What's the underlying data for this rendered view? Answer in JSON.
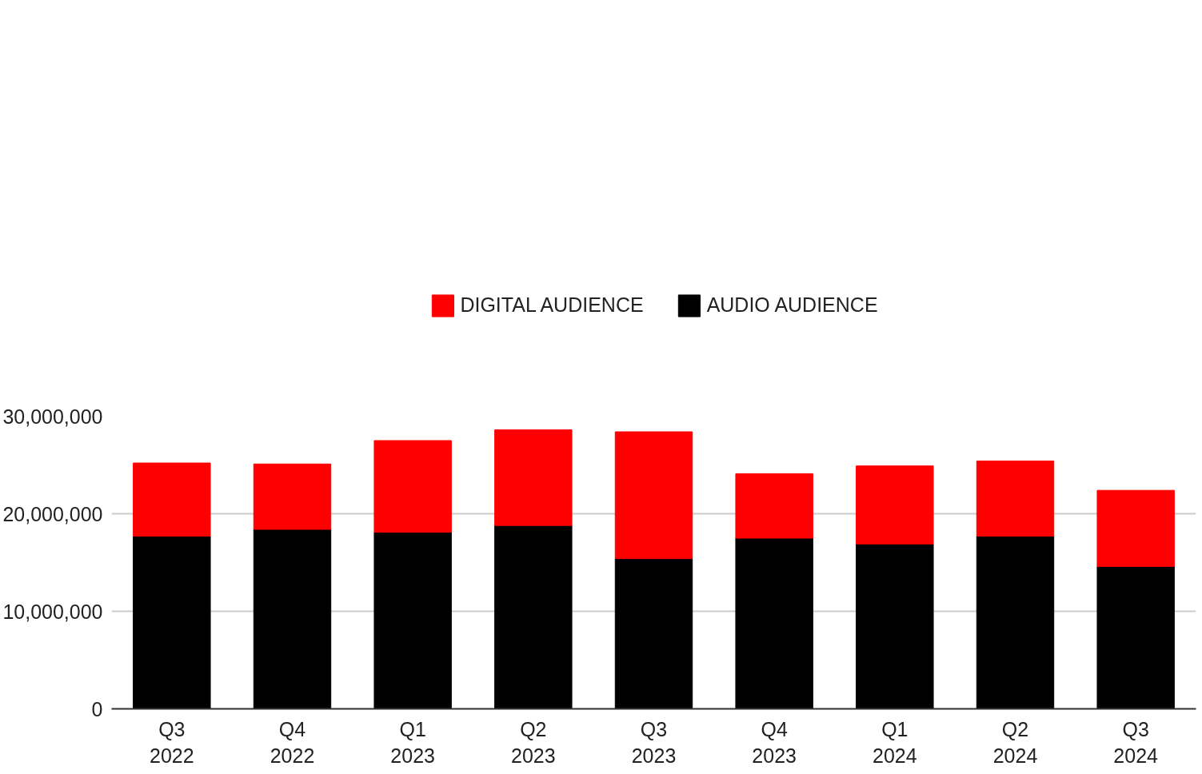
{
  "chart_data": {
    "type": "bar",
    "stacked": true,
    "categories": [
      "Q3\n2022",
      "Q4\n2022",
      "Q1\n2023",
      "Q2\n2023",
      "Q3\n2023",
      "Q4\n2023",
      "Q1\n2024",
      "Q2\n2024",
      "Q3\n2024"
    ],
    "series": [
      {
        "name": "AUDIO AUDIENCE",
        "color": "#000000",
        "values": [
          17700000,
          18400000,
          18100000,
          18800000,
          15400000,
          17500000,
          16900000,
          17700000,
          14600000
        ]
      },
      {
        "name": "DIGITAL AUDIENCE",
        "color": "#ff0000",
        "values": [
          7500000,
          6700000,
          9400000,
          9800000,
          13000000,
          6600000,
          8000000,
          7700000,
          7800000
        ]
      }
    ],
    "ylim": [
      0,
      30000000
    ],
    "yticks": [
      0,
      {
        "value": 10000000,
        "label": "10,000,000"
      },
      {
        "value": 20000000,
        "label": "20,000,000"
      },
      {
        "value": 30000000,
        "label": "30,000,000"
      }
    ],
    "grid": "y",
    "legend": "top"
  }
}
